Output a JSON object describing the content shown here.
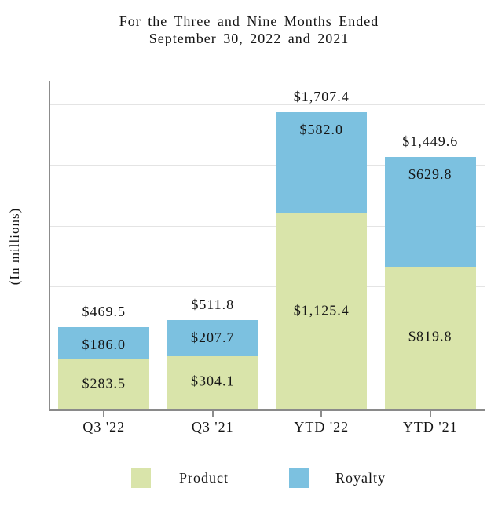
{
  "title": {
    "line1": "For the Three and Nine Months Ended",
    "line2": "September 30, 2022 and 2021"
  },
  "y_axis_label": "(In millions)",
  "legend": [
    {
      "label": "Product",
      "color": "#d9e4aa"
    },
    {
      "label": "Royalty",
      "color": "#7cc1e0"
    }
  ],
  "colors": {
    "product": "#d9e4aa",
    "royalty": "#7cc1e0",
    "axis": "#8c8c8c",
    "gridline": "#e4e4e4",
    "text": "#141414",
    "background": "#ffffff"
  },
  "chart_data": {
    "type": "bar",
    "stacked": true,
    "title": "For the Three and Nine Months Ended September 30, 2022 and 2021",
    "ylabel": "(In millions)",
    "xlabel": "",
    "categories": [
      "Q3 '22",
      "Q3 '21",
      "YTD '22",
      "YTD '21"
    ],
    "series": [
      {
        "name": "Product",
        "color": "#d9e4aa",
        "values": [
          283.5,
          304.1,
          1125.4,
          819.8
        ],
        "labels": [
          "$283.5",
          "$304.1",
          "$1,125.4",
          "$819.8"
        ]
      },
      {
        "name": "Royalty",
        "color": "#7cc1e0",
        "values": [
          186.0,
          207.7,
          582.0,
          629.8
        ],
        "labels": [
          "$186.0",
          "$207.7",
          "$582.0",
          "$629.8"
        ]
      }
    ],
    "totals": [
      469.5,
      511.8,
      1707.4,
      1449.6
    ],
    "total_labels": [
      "$469.5",
      "$511.8",
      "$1,707.4",
      "$1,449.6"
    ],
    "ylim": [
      0,
      1890
    ],
    "gridlines": [
      350,
      700,
      1050,
      1400,
      1750
    ],
    "grid": "horizontal only",
    "y_tick_labels": "none",
    "legend_position": "bottom"
  }
}
